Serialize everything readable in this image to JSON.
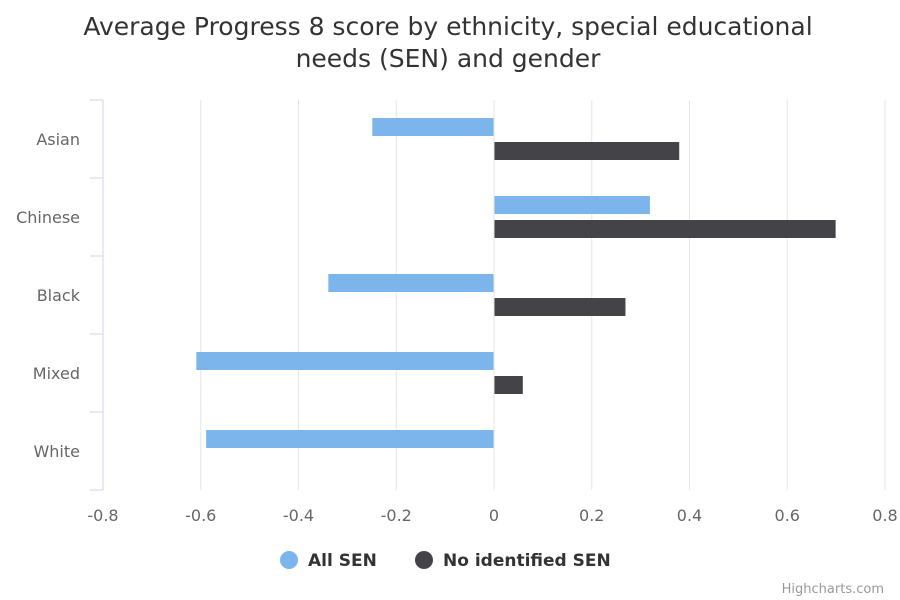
{
  "chart_data": {
    "type": "bar",
    "orientation": "horizontal",
    "title_lines": [
      "Average Progress 8 score by ethnicity, special educational",
      "needs (SEN) and gender"
    ],
    "categories": [
      "Asian",
      "Chinese",
      "Black",
      "Mixed",
      "White"
    ],
    "series": [
      {
        "name": "All SEN",
        "color": "#7cb5ec",
        "values": [
          -0.25,
          0.32,
          -0.34,
          -0.61,
          -0.59
        ]
      },
      {
        "name": "No identified SEN",
        "color": "#434348",
        "values": [
          0.38,
          0.7,
          0.27,
          0.06,
          0
        ]
      }
    ],
    "xlim": [
      -0.8,
      0.8
    ],
    "ticks": [
      "-0.8",
      "-0.6",
      "-0.4",
      "-0.2",
      "0",
      "0.2",
      "0.4",
      "0.6",
      "0.8"
    ],
    "grid": true,
    "legend_position": "bottom-center",
    "credits": "Highcharts.com"
  }
}
